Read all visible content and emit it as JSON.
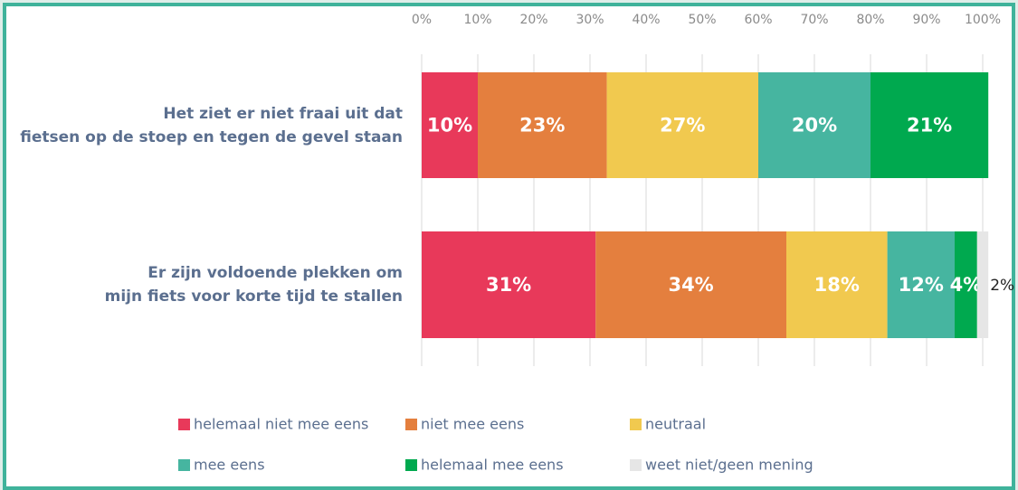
{
  "chart_data": {
    "type": "stacked_barh",
    "categories": [
      "Het ziet er niet fraai uit dat\nfietsen op de stoep en tegen de gevel staan",
      "Er zijn voldoende plekken om\nmijn fiets voor korte tijd te stallen"
    ],
    "series": [
      {
        "name": "helemaal niet mee eens",
        "color": "#e8395a",
        "values": [
          10,
          31
        ],
        "value_labels": [
          "10%",
          "31%"
        ]
      },
      {
        "name": "niet mee eens",
        "color": "#e47f3e",
        "values": [
          23,
          34
        ],
        "value_labels": [
          "23%",
          "34%"
        ]
      },
      {
        "name": "neutraal",
        "color": "#f1c94f",
        "values": [
          27,
          18
        ],
        "value_labels": [
          "27%",
          "18%"
        ]
      },
      {
        "name": "mee eens",
        "color": "#46b5a0",
        "values": [
          20,
          12
        ],
        "value_labels": [
          "20%",
          "12%"
        ]
      },
      {
        "name": "helemaal mee eens",
        "color": "#00a94f",
        "values": [
          21,
          4
        ],
        "value_labels": [
          "21%",
          "4%"
        ]
      },
      {
        "name": "weet niet/geen mening",
        "color": "#e6e6e6",
        "values": [
          null,
          2
        ],
        "value_labels": [
          null,
          "2%"
        ]
      }
    ],
    "xlim": [
      0,
      100
    ],
    "xticks": [
      {
        "value": 0,
        "label": "0%"
      },
      {
        "value": 10,
        "label": "10%"
      },
      {
        "value": 20,
        "label": "20%"
      },
      {
        "value": 30,
        "label": "30%"
      },
      {
        "value": 40,
        "label": "40%"
      },
      {
        "value": 50,
        "label": "50%"
      },
      {
        "value": 60,
        "label": "60%"
      },
      {
        "value": 70,
        "label": "70%"
      },
      {
        "value": 80,
        "label": "80%"
      },
      {
        "value": 90,
        "label": "90%"
      },
      {
        "value": 100,
        "label": "100%"
      }
    ],
    "grid": true
  }
}
